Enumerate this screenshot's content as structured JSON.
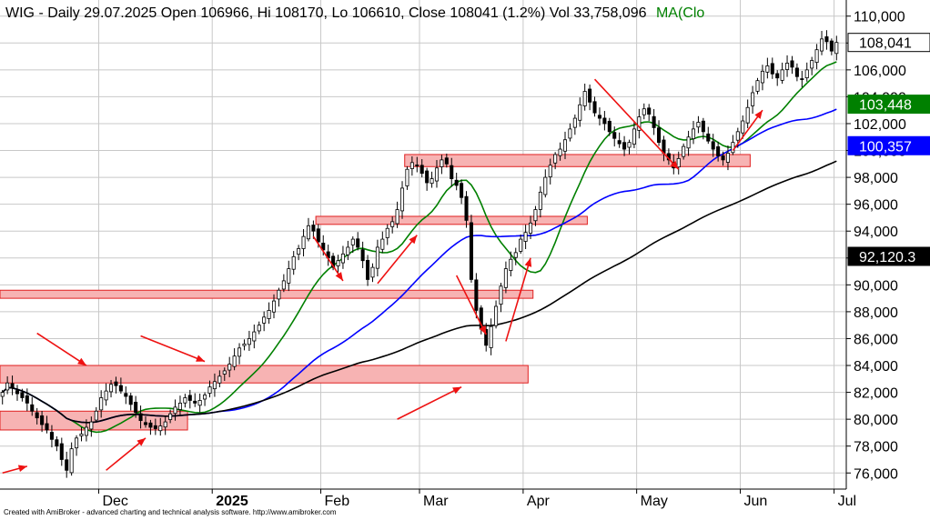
{
  "header": {
    "symbol_line": "WIG - Daily 29.07.2025 Open 106966, Hi 108170, Lo 106610, Close 108041 (1.2%) Vol 33,758,096",
    "ma_label": "MA(Clo"
  },
  "footer": "Created with AmiBroker - advanced charting and technical analysis software. http://www.amibroker.com",
  "colors": {
    "up_candle": "#ffffff",
    "down_candle": "#000000",
    "ma_short": "#008000",
    "ma_mid": "#0000ff",
    "ma_long": "#000000",
    "zone_fill": "#f7b3b3",
    "zone_stroke": "#e02020",
    "arrow": "#ee1111",
    "grid": "#c8c8c8"
  },
  "chart_data": {
    "type": "candlestick",
    "title": "WIG - Daily",
    "ylim": [
      74800,
      111200
    ],
    "y_ticks": [
      "76,000",
      "78,000",
      "80,000",
      "82,000",
      "84,000",
      "86,000",
      "88,000",
      "90,000",
      "92,000",
      "94,000",
      "96,000",
      "98,000",
      "100,000",
      "102,000",
      "104,000",
      "106,000",
      "108,000",
      "110,000"
    ],
    "x_ticks": [
      {
        "label": "Dec",
        "date": "2024-12-02",
        "bold": false
      },
      {
        "label": "2025",
        "date": "2025-01-02",
        "bold": true
      },
      {
        "label": "Feb",
        "date": "2025-02-03",
        "bold": false
      },
      {
        "label": "Mar",
        "date": "2025-03-03",
        "bold": false
      },
      {
        "label": "Apr",
        "date": "2025-04-01",
        "bold": false
      },
      {
        "label": "May",
        "date": "2025-05-02",
        "bold": false
      },
      {
        "label": "Jun",
        "date": "2025-06-02",
        "bold": false
      },
      {
        "label": "Jul",
        "date": "2025-07-01",
        "bold": false
      }
    ],
    "start_date": "2024-11-04",
    "closes": [
      82000,
      82700,
      82300,
      81900,
      81600,
      81200,
      80600,
      80100,
      79600,
      79200,
      78500,
      78000,
      77000,
      76200,
      77800,
      78600,
      78900,
      79400,
      79800,
      80600,
      81600,
      82100,
      82600,
      82500,
      82100,
      81700,
      81100,
      80500,
      79900,
      79600,
      79400,
      79300,
      79500,
      79800,
      80400,
      80900,
      81200,
      81600,
      81400,
      81200,
      81400,
      81800,
      82400,
      82800,
      83200,
      83600,
      84100,
      84700,
      85300,
      85600,
      86000,
      86500,
      87000,
      87600,
      88100,
      88800,
      89600,
      90300,
      91200,
      92100,
      92700,
      93600,
      94400,
      94000,
      93200,
      92600,
      92000,
      91300,
      91800,
      92300,
      92800,
      93400,
      92800,
      91800,
      90400,
      91300,
      92800,
      93400,
      94200,
      94700,
      95600,
      97200,
      98600,
      99100,
      98900,
      98300,
      97600,
      97900,
      98700,
      99300,
      99000,
      97900,
      97400,
      96500,
      94800,
      90400,
      88100,
      86700,
      85500,
      86900,
      88400,
      89900,
      91200,
      91900,
      92400,
      93400,
      93900,
      94600,
      95600,
      96900,
      98000,
      98900,
      99700,
      100100,
      100800,
      101600,
      102400,
      103400,
      104400,
      103600,
      102800,
      102400,
      102000,
      101400,
      100900,
      100500,
      100100,
      100600,
      101600,
      102500,
      103100,
      102700,
      101700,
      100600,
      99800,
      99300,
      98700,
      99400,
      100300,
      101000,
      101600,
      102100,
      101400,
      100700,
      100100,
      99600,
      99300,
      99800,
      100600,
      101400,
      102200,
      103200,
      104300,
      105200,
      105900,
      106300,
      105700,
      105400,
      106000,
      106500,
      106200,
      105500,
      105300,
      106000,
      106700,
      107500,
      108300,
      108100,
      107400,
      108041
    ],
    "ma_short": {
      "period": 15,
      "color": "#008000",
      "last": 103448
    },
    "ma_mid": {
      "period": 45,
      "color": "#0000ff",
      "last": 100357
    },
    "ma_long": {
      "period": 100,
      "color": "#000000",
      "last": 92120.3
    },
    "badges": [
      {
        "label": "108,041",
        "value": 108041,
        "bg": "#ffffff",
        "fg": "#000000"
      },
      {
        "label": "103,448",
        "value": 103448,
        "bg": "#008000",
        "fg": "#ffffff"
      },
      {
        "label": "100,357",
        "value": 100357,
        "bg": "#0000ff",
        "fg": "#ffffff"
      },
      {
        "label": "92,120.3",
        "value": 92120.3,
        "bg": "#000000",
        "fg": "#ffffff"
      }
    ],
    "zones": [
      {
        "from_bar": 0,
        "to_bar": 37,
        "low": 79200,
        "high": 80600
      },
      {
        "from_bar": 0,
        "to_bar": 106,
        "low": 82700,
        "high": 84000
      },
      {
        "from_bar": 0,
        "to_bar": 107,
        "low": 89000,
        "high": 89600
      },
      {
        "from_bar": 64,
        "to_bar": 118,
        "low": 94500,
        "high": 95100
      },
      {
        "from_bar": 82,
        "to_bar": 151,
        "low": 98800,
        "high": 99700
      }
    ],
    "arrows": [
      {
        "from": [
          0,
          76000
        ],
        "to": [
          5,
          76500
        ]
      },
      {
        "from": [
          21,
          76200
        ],
        "to": [
          29,
          78600
        ]
      },
      {
        "from": [
          7,
          86400
        ],
        "to": [
          17,
          84000
        ]
      },
      {
        "from": [
          28,
          86200
        ],
        "to": [
          41,
          84300
        ]
      },
      {
        "from": [
          63,
          93600
        ],
        "to": [
          69,
          90300
        ]
      },
      {
        "from": [
          76,
          90100
        ],
        "to": [
          84,
          93700
        ]
      },
      {
        "from": [
          80,
          80000
        ],
        "to": [
          93,
          82400
        ]
      },
      {
        "from": [
          92,
          90700
        ],
        "to": [
          98,
          86300
        ]
      },
      {
        "from": [
          102,
          85800
        ],
        "to": [
          107,
          92000
        ]
      },
      {
        "from": [
          120,
          105300
        ],
        "to": [
          137,
          98600
        ]
      },
      {
        "from": [
          148,
          100000
        ],
        "to": [
          154,
          103000
        ]
      }
    ]
  }
}
